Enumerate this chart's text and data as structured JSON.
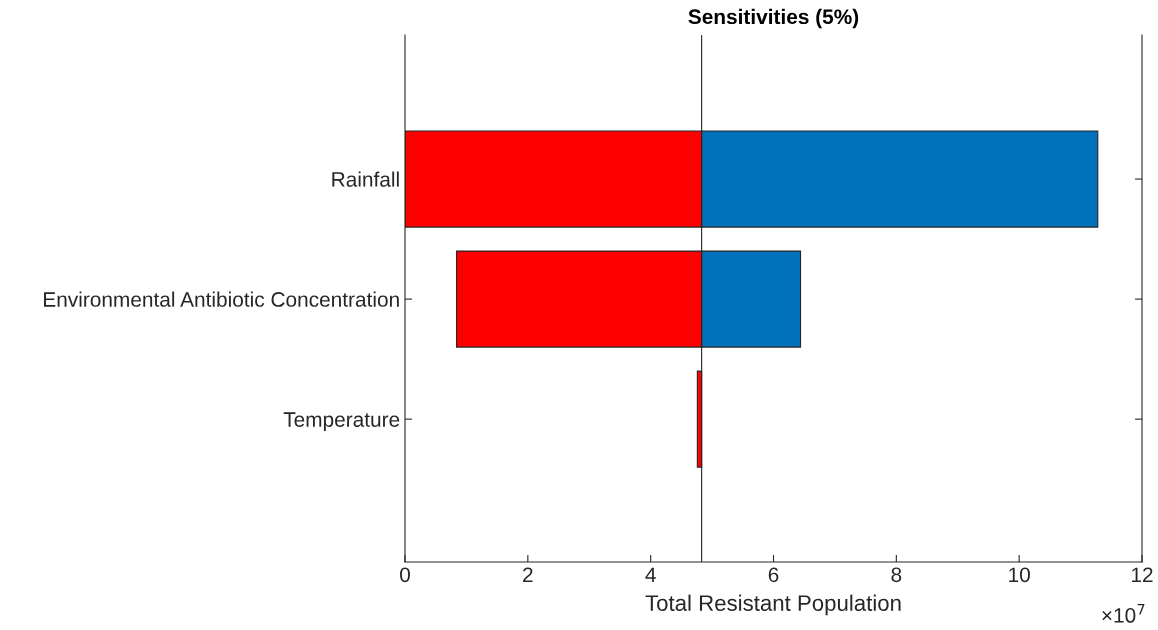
{
  "chart_data": {
    "type": "bar",
    "orientation": "horizontal",
    "title": "Sensitivities (5%)",
    "xlabel": "Total Resistant Population",
    "categories": [
      "Rainfall",
      "Environmental Antibiotic Concentration",
      "Temperature"
    ],
    "series": [
      {
        "color": "#ff0000",
        "base": [
          0,
          0.84,
          4.76
        ],
        "values": [
          4.83,
          3.99,
          0.07
        ]
      },
      {
        "color": "#0072bd",
        "base": [
          4.83,
          4.83,
          null
        ],
        "values": [
          6.45,
          1.61,
          null
        ]
      }
    ],
    "xlim": [
      0,
      12
    ],
    "xticks": [
      0,
      2,
      4,
      6,
      8,
      10,
      12
    ],
    "ref_lines": [
      {
        "axis": "x",
        "value": 4.83,
        "color": "#262626"
      }
    ],
    "annotations": [
      "×10$^{7}$"
    ],
    "grid": false,
    "legend": false
  }
}
